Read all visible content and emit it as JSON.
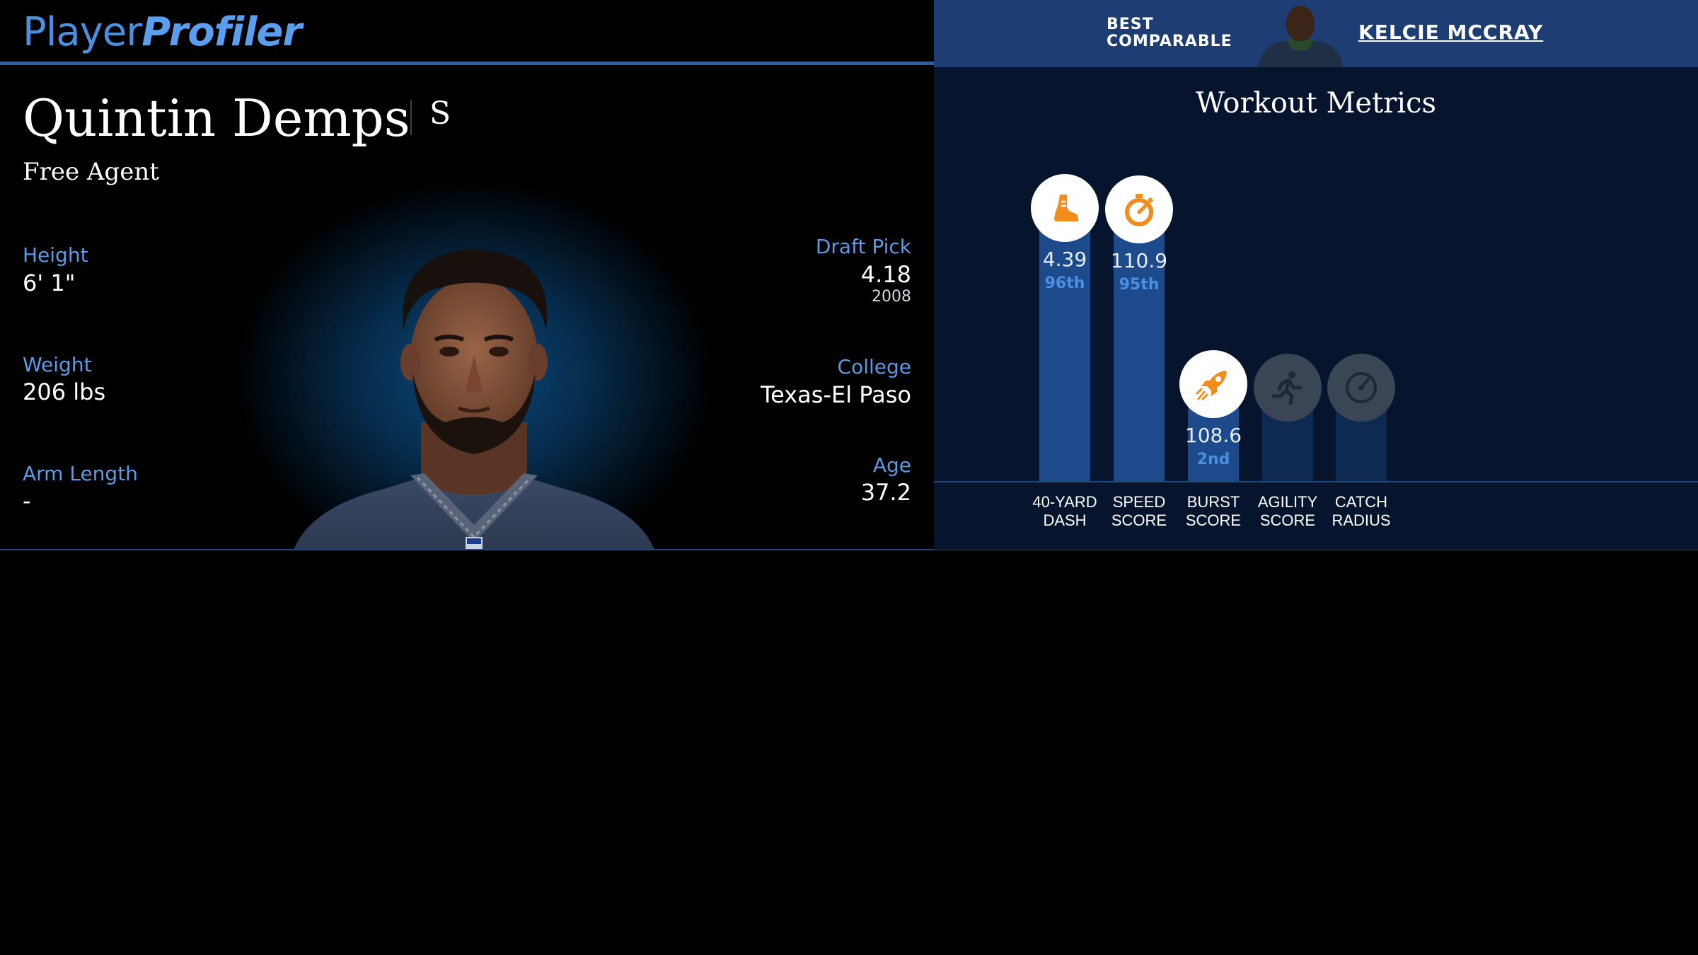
{
  "header": {
    "logo_word1": "Player",
    "logo_word2": "Profiler",
    "best_comparable_label_line1": "BEST",
    "best_comparable_label_line2": "COMPARABLE",
    "best_comparable_name": "KELCIE MCCRAY"
  },
  "player": {
    "name": "Quintin Demps",
    "position": "S",
    "team": "Free Agent",
    "height_label": "Height",
    "height": "6' 1\"",
    "weight_label": "Weight",
    "weight": "206 lbs",
    "arm_length_label": "Arm Length",
    "arm_length": "-",
    "draft_pick_label": "Draft Pick",
    "draft_pick": "4.18",
    "draft_year": "2008",
    "college_label": "College",
    "college": "Texas-El Paso",
    "age_label": "Age",
    "age": "37.2"
  },
  "workout": {
    "title": "Workout Metrics",
    "metrics": [
      {
        "label_line1": "40-YARD",
        "label_line2": "DASH",
        "value": "4.39",
        "percentile": "96th",
        "icon": "running-shoe-icon",
        "level": 0.96
      },
      {
        "label_line1": "SPEED",
        "label_line2": "SCORE",
        "value": "110.9",
        "percentile": "95th",
        "icon": "stopwatch-icon",
        "level": 0.95
      },
      {
        "label_line1": "BURST",
        "label_line2": "SCORE",
        "value": "108.6",
        "percentile": "2nd",
        "icon": "rocket-icon",
        "level": 0.02
      },
      {
        "label_line1": "AGILITY",
        "label_line2": "SCORE",
        "value": "",
        "percentile": "",
        "icon": "runner-icon",
        "level": 0
      },
      {
        "label_line1": "CATCH",
        "label_line2": "RADIUS",
        "value": "",
        "percentile": "",
        "icon": "radius-gauge-icon",
        "level": 0
      }
    ]
  },
  "colors": {
    "accent_blue": "#4a8fe0",
    "bar_fill": "#1c4a8a",
    "icon_orange": "#f28c1b",
    "header_right_bg": "#1e3d73"
  }
}
